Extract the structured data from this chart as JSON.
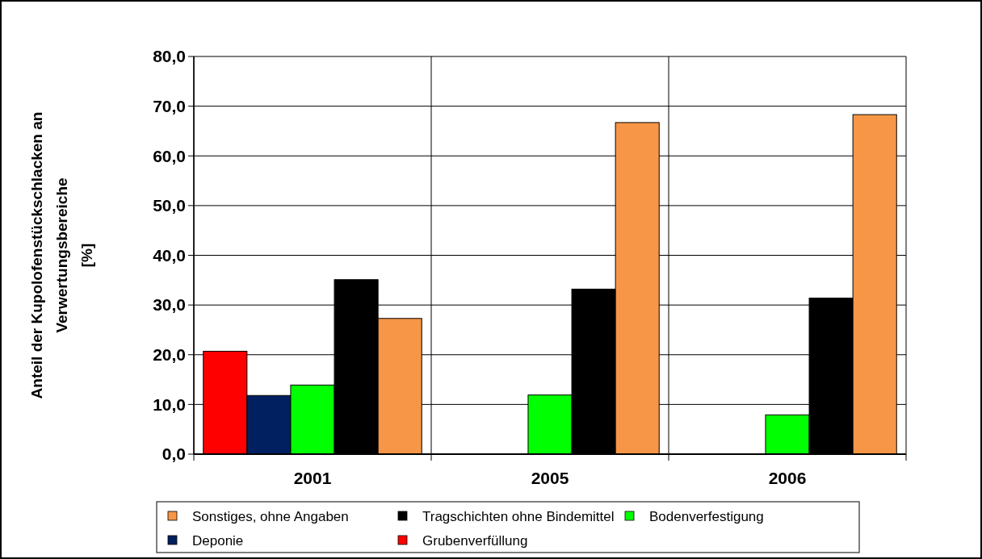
{
  "chart_data": {
    "type": "bar",
    "ylabel": "Anteil der Kupolofenstückschlacken an\nVerwertungsbereiche\n[%]",
    "categories": [
      "2001",
      "2005",
      "2006"
    ],
    "series": [
      {
        "name": "Grubenverfüllung",
        "color": "#ff0000",
        "values": [
          20.7,
          0,
          0
        ]
      },
      {
        "name": "Deponie",
        "color": "#002060",
        "values": [
          11.8,
          0,
          0
        ]
      },
      {
        "name": "Bodenverfestigung",
        "color": "#00ff00",
        "values": [
          13.9,
          11.9,
          7.9
        ]
      },
      {
        "name": "Tragschichten ohne Bindemittel",
        "color": "#000000",
        "values": [
          35.1,
          33.2,
          31.4
        ]
      },
      {
        "name": "Sonstiges, ohne Angaben",
        "color": "#f79646",
        "values": [
          27.3,
          66.7,
          68.3
        ]
      }
    ],
    "ylim": [
      0,
      80
    ],
    "yticks": [
      {
        "value": 0,
        "label": "0,0"
      },
      {
        "value": 10,
        "label": "10,0"
      },
      {
        "value": 20,
        "label": "20,0"
      },
      {
        "value": 30,
        "label": "30,0"
      },
      {
        "value": 40,
        "label": "40,0"
      },
      {
        "value": 50,
        "label": "50,0"
      },
      {
        "value": 60,
        "label": "60,0"
      },
      {
        "value": 70,
        "label": "70,0"
      },
      {
        "value": 80,
        "label": "80,0"
      }
    ],
    "grid": true,
    "legend": "bottom"
  }
}
